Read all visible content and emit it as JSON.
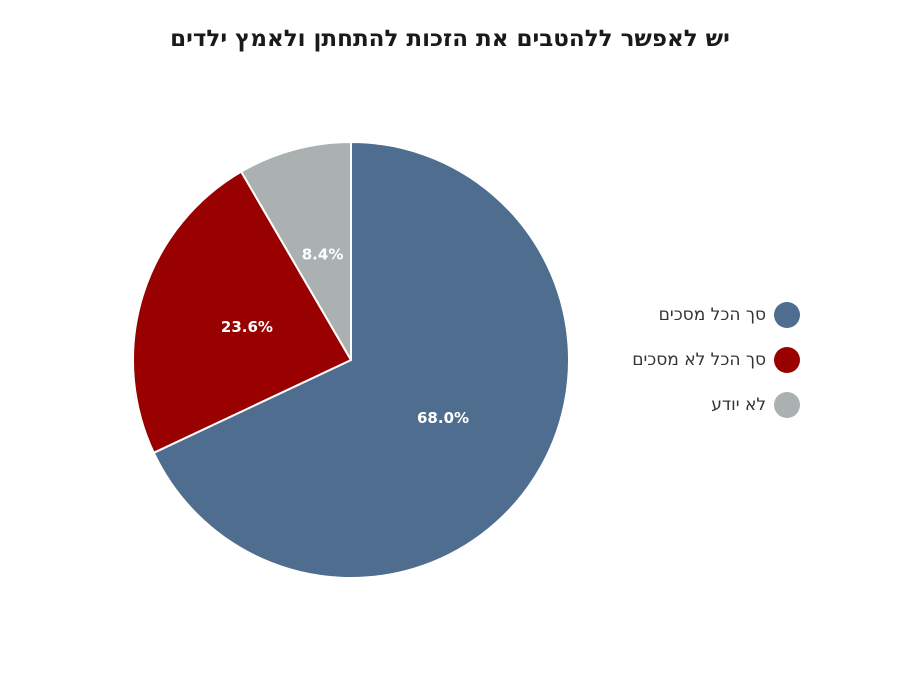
{
  "chart_data": {
    "type": "pie",
    "title": "יש לאפשר ללהטבים את הזכות להתחתן ולאמץ ילדים",
    "slices": [
      {
        "name": "סך הכל מסכים",
        "value": 68.0,
        "label": "68.0%",
        "color": "#4f6d8f"
      },
      {
        "name": "סך הכל לא מסכים",
        "value": 23.6,
        "label": "23.6%",
        "color": "#990000"
      },
      {
        "name": "לא יודע",
        "value": 8.4,
        "label": "8.4%",
        "color": "#abb0b1"
      }
    ],
    "legend_position": "right"
  }
}
